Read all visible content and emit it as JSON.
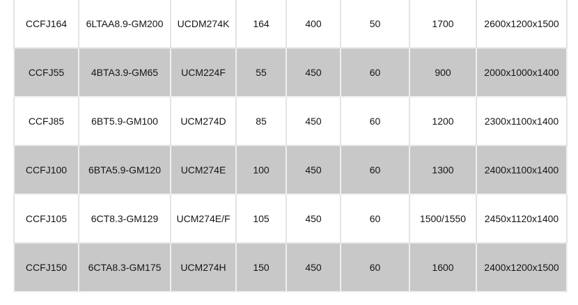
{
  "rows": [
    [
      "CCFJ164",
      "6LTAA8.9-GM200",
      "UCDM274K",
      "164",
      "400",
      "50",
      "1700",
      "2600x1200x1500"
    ],
    [
      "CCFJ55",
      "4BTA3.9-GM65",
      "UCM224F",
      "55",
      "450",
      "60",
      "900",
      "2000x1000x1400"
    ],
    [
      "CCFJ85",
      "6BT5.9-GM100",
      "UCM274D",
      "85",
      "450",
      "60",
      "1200",
      "2300x1100x1400"
    ],
    [
      "CCFJ100",
      "6BTA5.9-GM120",
      "UCM274E",
      "100",
      "450",
      "60",
      "1300",
      "2400x1100x1400"
    ],
    [
      "CCFJ105",
      "6CT8.3-GM129",
      "UCM274E/F",
      "105",
      "450",
      "60",
      "1500/1550",
      "2450x1120x1400"
    ],
    [
      "CCFJ150",
      "6CTA8.3-GM175",
      "UCM274H",
      "150",
      "450",
      "60",
      "1600",
      "2400x1200x1500"
    ]
  ],
  "colors": {
    "alt_row": "#c8c8c8"
  }
}
